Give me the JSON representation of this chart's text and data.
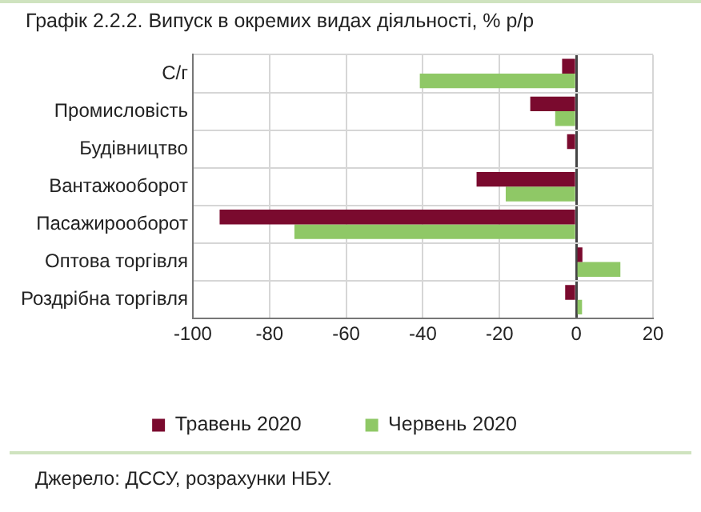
{
  "chart_data": {
    "type": "bar",
    "orientation": "horizontal",
    "title": "Графік 2.2.2. Випуск в окремих видах діяльності, % р/р",
    "categories": [
      "С/г",
      "Промисловість",
      "Будівництво",
      "Вантажооборот",
      "Пасажирооборот",
      "Оптова торгівля",
      "Роздрібна торгівля"
    ],
    "series": [
      {
        "name": "Травень 2020",
        "color": "#7a0a2e",
        "values": [
          -3.7,
          -12,
          -2.4,
          -26,
          -93,
          1.6,
          -2.9
        ]
      },
      {
        "name": "Червень 2020",
        "color": "#8fc866",
        "values": [
          -40.8,
          -5.5,
          0,
          -18.4,
          -73.5,
          11.5,
          1.5
        ]
      }
    ],
    "xlim": [
      -100,
      20
    ],
    "xticks": [
      -100,
      -80,
      -60,
      -40,
      -20,
      0,
      20
    ],
    "grid": true,
    "legend": "bottom",
    "annotations": [
      "Джерело: ДССУ, розрахунки НБУ."
    ]
  }
}
